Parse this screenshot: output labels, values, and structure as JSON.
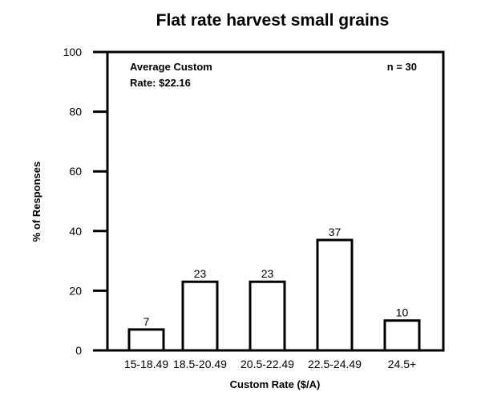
{
  "chart_data": {
    "type": "bar",
    "title": "Flat rate harvest small grains",
    "xlabel": "Custom Rate ($/A)",
    "ylabel": "% of Responses",
    "categories": [
      "15-18.49",
      "18.5-20.49",
      "20.5-22.49",
      "22.5-24.49",
      "24.5+"
    ],
    "values": [
      7,
      23,
      23,
      37,
      10
    ],
    "data_labels": [
      "7",
      "23",
      "23",
      "37",
      "10"
    ],
    "ylim": [
      0,
      100
    ],
    "yticks": [
      0,
      20,
      40,
      60,
      80,
      100
    ],
    "grid": false,
    "annotations": {
      "avg_line1": "Average Custom",
      "avg_line2": "Rate: $22.16",
      "n": "n = 30"
    },
    "bar_fill": "#ffffff",
    "bar_stroke": "#000000"
  }
}
